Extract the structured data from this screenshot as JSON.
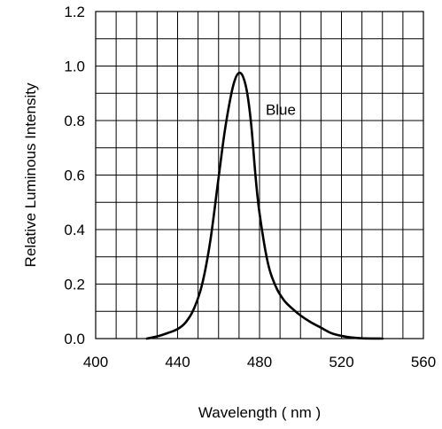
{
  "chart_data": {
    "type": "line",
    "title": "",
    "xlabel": "Wavelength ( nm )",
    "ylabel": "Relative Luminous Intensity",
    "xlim": [
      400,
      560
    ],
    "ylim": [
      0,
      1.2
    ],
    "grid": true,
    "x_ticks": [
      400,
      440,
      480,
      520,
      560
    ],
    "x_tick_labels": [
      "400",
      "440",
      "480",
      "520",
      "560"
    ],
    "y_ticks": [
      0,
      0.2,
      0.4,
      0.6,
      0.8,
      1.0,
      1.2
    ],
    "y_tick_labels": [
      "0.0",
      "0.2",
      "0.4",
      "0.6",
      "0.8",
      "1.0",
      "1.2"
    ],
    "x_minor_step": 10,
    "y_minor_step": 0.1,
    "series": [
      {
        "name": "Blue",
        "color": "#000000",
        "points": [
          [
            425,
            0.0
          ],
          [
            430,
            0.008
          ],
          [
            435,
            0.02
          ],
          [
            440,
            0.035
          ],
          [
            444,
            0.06
          ],
          [
            448,
            0.11
          ],
          [
            452,
            0.2
          ],
          [
            456,
            0.36
          ],
          [
            460,
            0.59
          ],
          [
            463,
            0.76
          ],
          [
            466,
            0.89
          ],
          [
            468,
            0.95
          ],
          [
            470,
            0.975
          ],
          [
            472,
            0.96
          ],
          [
            474,
            0.9
          ],
          [
            476,
            0.78
          ],
          [
            478,
            0.6
          ],
          [
            480,
            0.46
          ],
          [
            484,
            0.28
          ],
          [
            488,
            0.19
          ],
          [
            492,
            0.14
          ],
          [
            496,
            0.11
          ],
          [
            500,
            0.085
          ],
          [
            505,
            0.06
          ],
          [
            510,
            0.04
          ],
          [
            515,
            0.02
          ],
          [
            520,
            0.01
          ],
          [
            525,
            0.004
          ],
          [
            530,
            0.001
          ],
          [
            540,
            0.0
          ]
        ]
      }
    ],
    "annotations": [
      {
        "text": "Blue",
        "x": 483,
        "y": 0.84
      }
    ]
  }
}
